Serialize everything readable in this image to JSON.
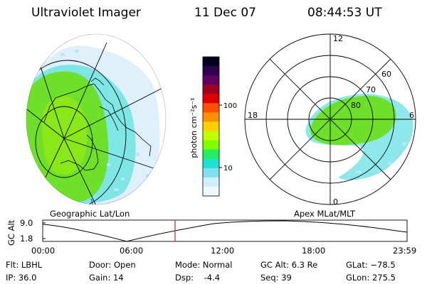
{
  "header": {
    "instrument": "Ultraviolet Imager",
    "date": "11 Dec 07",
    "time": "08:44:53 UT"
  },
  "colorbar": {
    "unit_label": "photon cm⁻²s⁻¹",
    "tick_labels": [
      "100",
      "10"
    ],
    "colors": [
      "#000020",
      "#300050",
      "#600060",
      "#a00020",
      "#e00000",
      "#ff5000",
      "#ff9000",
      "#ffd000",
      "#c0ff00",
      "#80ff00",
      "#20f060",
      "#20e0d0",
      "#80e0f0",
      "#d0f0ff",
      "#f0f8ff"
    ]
  },
  "left_panel": {
    "caption": "Geographic Lat/Lon"
  },
  "right_panel": {
    "caption": "Apex MLat/MLT",
    "hour_labels": [
      "12",
      "18",
      "6",
      "0"
    ],
    "lat_labels": [
      "60",
      "70",
      "80"
    ]
  },
  "timeline": {
    "ylabel": "GC Alt",
    "y_ticks": [
      "9.0",
      "1.8"
    ],
    "x_ticks": [
      "00:00",
      "06:00",
      "12:00",
      "18:00",
      "23:59"
    ],
    "marker_time": "08:44:53"
  },
  "info": {
    "flt": "Flt: LBHL",
    "ip": "IP: 36.0",
    "door": "Door: Open",
    "gain": "Gain: 14",
    "mode": "Mode: Normal",
    "dsp": "Dsp:    -4.4",
    "gc_alt": "GC Alt: 6.3 Re",
    "seq": "Seq: 39",
    "glat": "GLat: −78.5",
    "glon": "GLon: 275.5"
  }
}
